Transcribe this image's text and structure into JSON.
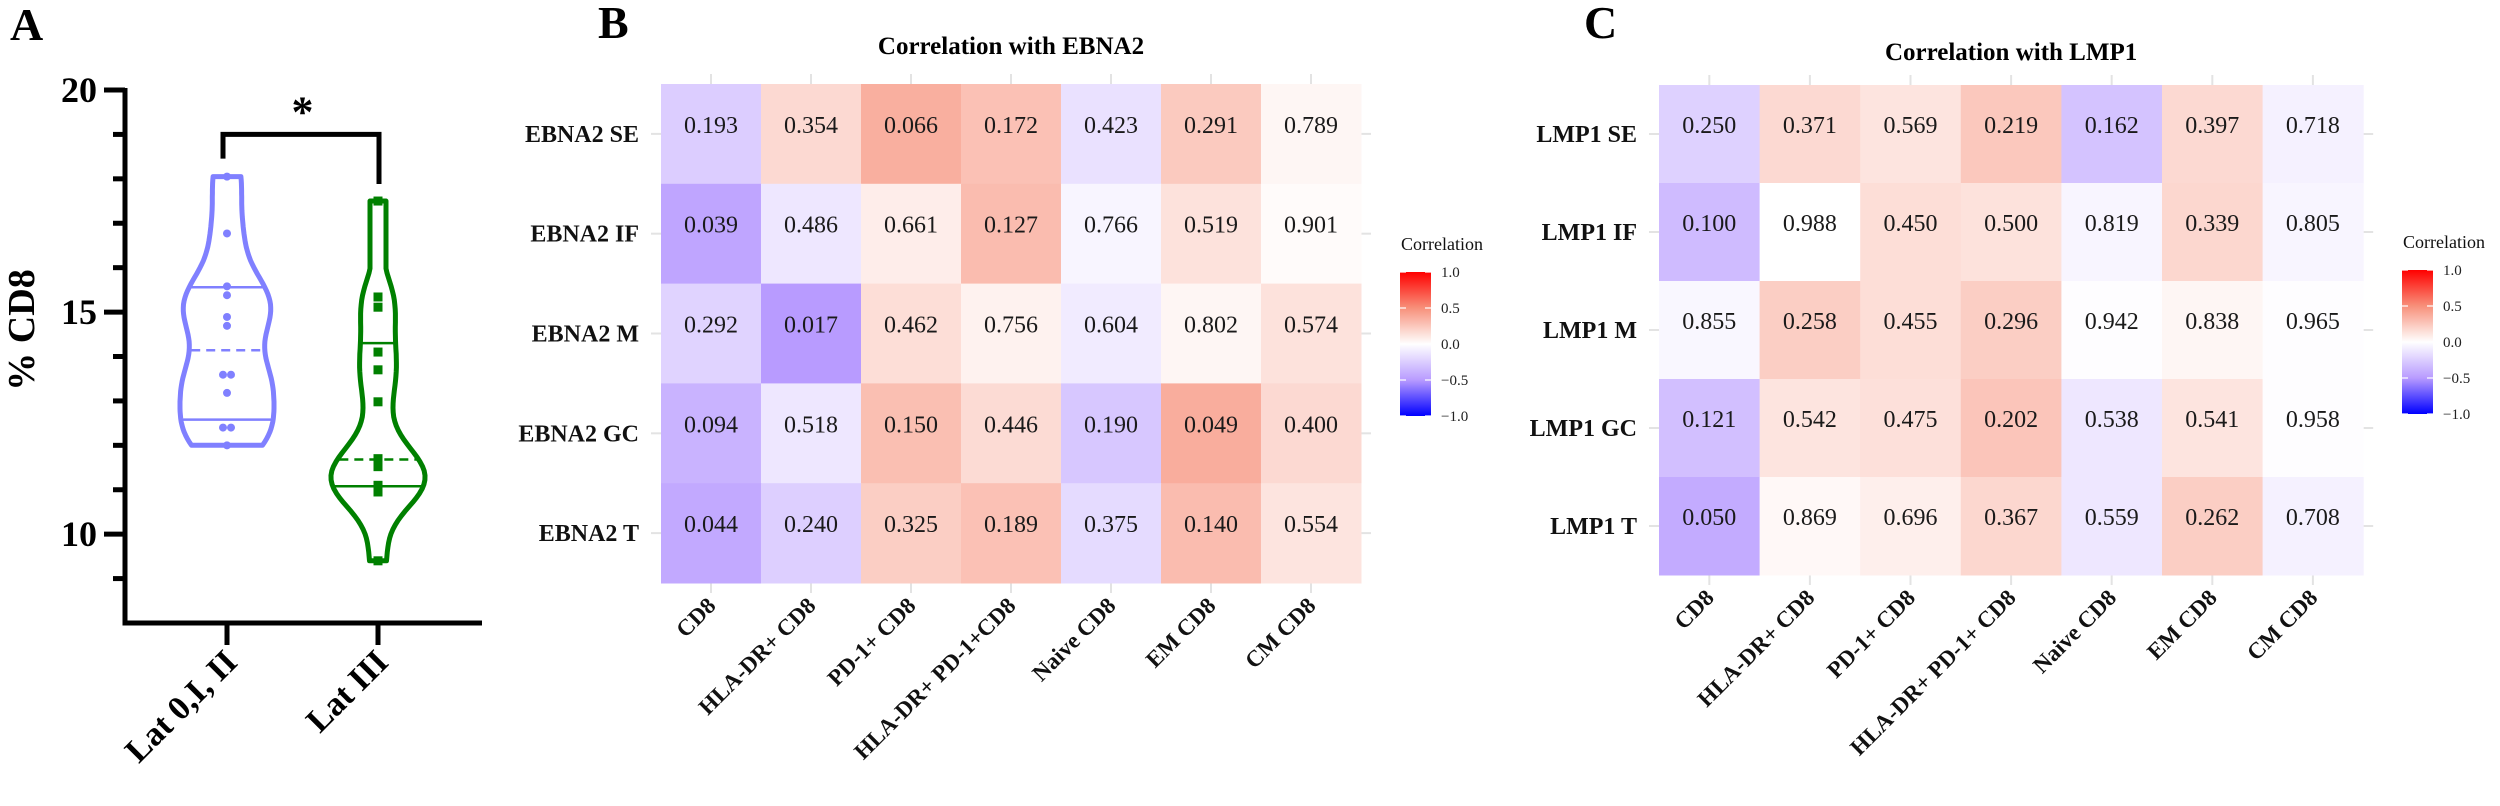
{
  "panels": {
    "a": "A",
    "b": "B",
    "c": "C"
  },
  "chart_data": [
    {
      "type": "violin",
      "panel": "A",
      "ylabel": "% CD8",
      "ylim": [
        8,
        20
      ],
      "yticks": [
        10,
        15,
        20
      ],
      "yticklabels": [
        "10",
        "15",
        "20"
      ],
      "yminor_step": 1,
      "categories": [
        "Lat 0,I, II",
        "Lat III"
      ],
      "series": [
        {
          "name": "Lat 0,I, II",
          "color": "#8080ff",
          "marker": "circle",
          "points": [
            18.05,
            16.77,
            15.58,
            15.38,
            14.89,
            14.69,
            13.59,
            13.59,
            13.18,
            12.4,
            12.4,
            12.0
          ],
          "median": 14.14,
          "quartiles": [
            12.58,
            15.56
          ]
        },
        {
          "name": "Lat III",
          "color": "#008000",
          "marker": "square",
          "points": [
            17.5,
            15.34,
            15.11,
            14.1,
            13.7,
            12.98,
            11.7,
            11.66,
            11.52,
            11.1,
            11.08,
            11.02,
            10.95,
            9.4
          ],
          "median": 11.68,
          "quartiles": [
            11.08,
            14.3
          ]
        }
      ],
      "significance": {
        "label": "*",
        "between": [
          0,
          1
        ],
        "level": 19
      }
    },
    {
      "type": "heatmap",
      "panel": "B",
      "title": "Correlation with EBNA2",
      "rows": [
        "EBNA2 SE",
        "EBNA2 IF",
        "EBNA2 M",
        "EBNA2 GC",
        "EBNA2 T"
      ],
      "cols": [
        "CD8",
        "HLA-DR+ CD8",
        "PD-1+ CD8",
        "HLA-DR+ PD-1+CD8",
        "Naive CD8",
        "EM CD8",
        "CM CD8"
      ],
      "labels": [
        [
          "0.193",
          "0.354",
          "0.066",
          "0.172",
          "0.423",
          "0.291",
          "0.789"
        ],
        [
          "0.039",
          "0.486",
          "0.661",
          "0.127",
          "0.766",
          "0.519",
          "0.901"
        ],
        [
          "0.292",
          "0.017",
          "0.462",
          "0.756",
          "0.604",
          "0.802",
          "0.574"
        ],
        [
          "0.094",
          "0.518",
          "0.150",
          "0.446",
          "0.190",
          "0.049",
          "0.400"
        ],
        [
          "0.044",
          "0.240",
          "0.325",
          "0.189",
          "0.375",
          "0.140",
          "0.554"
        ]
      ],
      "correlation": [
        [
          -0.25,
          0.17,
          0.36,
          0.28,
          -0.15,
          0.24,
          0.04
        ],
        [
          -0.45,
          -0.12,
          0.08,
          0.3,
          -0.05,
          0.13,
          0.02
        ],
        [
          -0.22,
          -0.5,
          0.15,
          0.06,
          -0.1,
          0.04,
          0.13
        ],
        [
          -0.38,
          -0.12,
          0.29,
          0.16,
          -0.28,
          0.37,
          0.17
        ],
        [
          -0.43,
          -0.24,
          0.22,
          0.28,
          -0.18,
          0.3,
          0.12
        ]
      ],
      "colorbar": {
        "title": "Correlation",
        "range": [
          -1,
          1
        ],
        "ticks": [
          1,
          0.5,
          0,
          -0.5,
          -1
        ],
        "ticklabels": [
          "1.0",
          "0.5",
          "0.0",
          "−0.5",
          "−1.0"
        ],
        "low": "#0000ff",
        "mid": "#ffffff",
        "high": "#ff0000"
      }
    },
    {
      "type": "heatmap",
      "panel": "C",
      "title": "Correlation with LMP1",
      "rows": [
        "LMP1 SE",
        "LMP1 IF",
        "LMP1 M",
        "LMP1 GC",
        "LMP1 T"
      ],
      "cols": [
        "CD8",
        "HLA-DR+ CD8",
        "PD-1+ CD8",
        "HLA-DR+ PD-1+ CD8",
        "Naive CD8",
        "EM CD8",
        "CM CD8"
      ],
      "labels": [
        [
          "0.250",
          "0.371",
          "0.569",
          "0.219",
          "0.162",
          "0.397",
          "0.718"
        ],
        [
          "0.100",
          "0.988",
          "0.450",
          "0.500",
          "0.819",
          "0.339",
          "0.805"
        ],
        [
          "0.855",
          "0.258",
          "0.455",
          "0.296",
          "0.942",
          "0.838",
          "0.965"
        ],
        [
          "0.121",
          "0.542",
          "0.475",
          "0.202",
          "0.538",
          "0.541",
          "0.958"
        ],
        [
          "0.050",
          "0.869",
          "0.696",
          "0.367",
          "0.559",
          "0.262",
          "0.708"
        ]
      ],
      "correlation": [
        [
          -0.23,
          0.17,
          0.12,
          0.25,
          -0.3,
          0.17,
          -0.07
        ],
        [
          -0.34,
          0.0,
          0.15,
          0.13,
          -0.05,
          0.18,
          -0.05
        ],
        [
          -0.04,
          0.22,
          0.15,
          0.22,
          -0.01,
          0.04,
          -0.01
        ],
        [
          -0.32,
          0.12,
          0.14,
          0.26,
          -0.12,
          0.12,
          -0.01
        ],
        [
          -0.42,
          0.03,
          0.07,
          0.18,
          -0.12,
          0.22,
          -0.07
        ]
      ],
      "colorbar": {
        "title": "Correlation",
        "range": [
          -1,
          1
        ],
        "ticks": [
          1,
          0.5,
          0,
          -0.5,
          -1
        ],
        "ticklabels": [
          "1.0",
          "0.5",
          "0.0",
          "−0.5",
          "−1.0"
        ],
        "low": "#0000ff",
        "mid": "#ffffff",
        "high": "#ff0000"
      }
    }
  ]
}
